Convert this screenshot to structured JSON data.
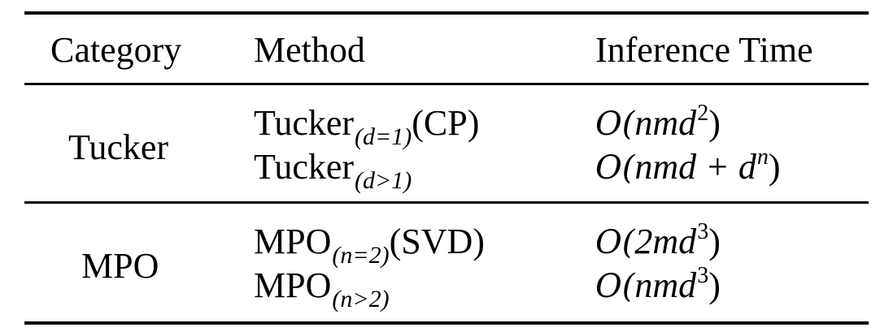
{
  "table": {
    "headers": {
      "category": "Category",
      "method": "Method",
      "time": "Inference Time"
    },
    "groups": [
      {
        "category": "Tucker",
        "rows": [
          {
            "method_base": "Tucker",
            "method_sub": "(d=1)",
            "method_suffix": "(CP)",
            "time_prefix": "O(",
            "time_body": "nmd",
            "time_sup": "2",
            "time_tail": ")"
          },
          {
            "method_base": "Tucker",
            "method_sub": "(d>1)",
            "method_suffix": "",
            "time_prefix": "O(",
            "time_body": "nmd + d",
            "time_sup": "n",
            "time_tail": ")"
          }
        ]
      },
      {
        "category": "MPO",
        "rows": [
          {
            "method_base": "MPO",
            "method_sub": "(n=2)",
            "method_suffix": "(SVD)",
            "time_prefix": "O(",
            "time_body": "2md",
            "time_sup": "3",
            "time_tail": ")"
          },
          {
            "method_base": "MPO",
            "method_sub": "(n>2)",
            "method_suffix": "",
            "time_prefix": "O(",
            "time_body": "nmd",
            "time_sup": "3",
            "time_tail": ")"
          }
        ]
      }
    ]
  }
}
